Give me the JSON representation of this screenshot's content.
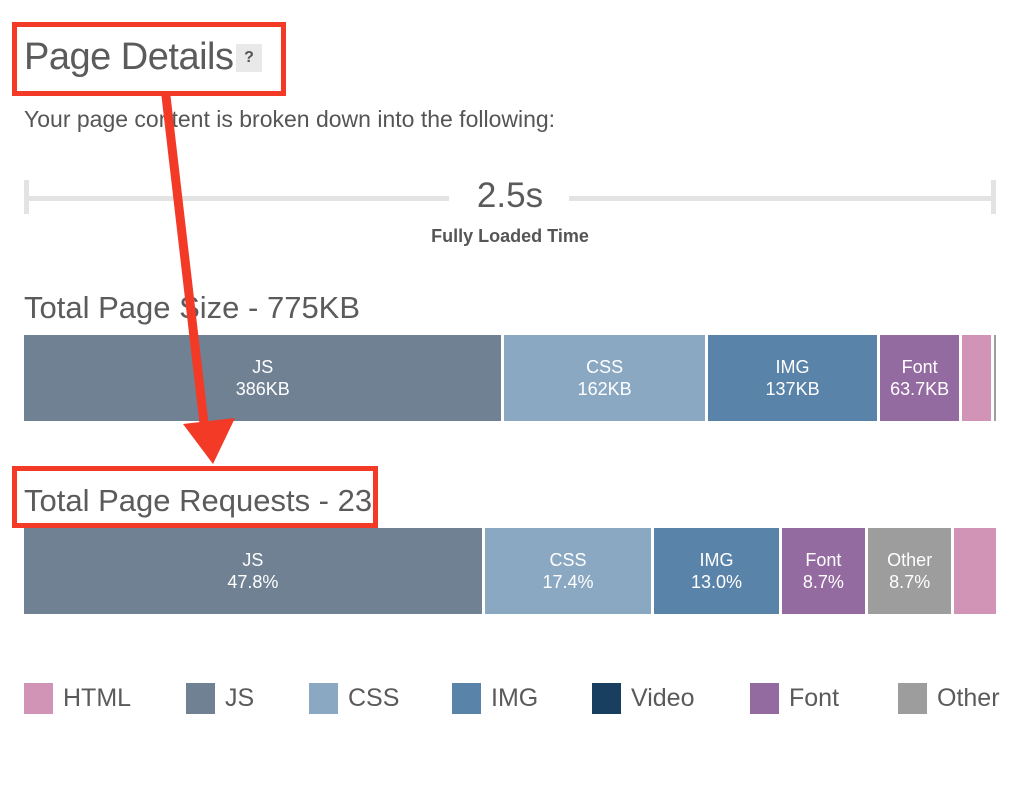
{
  "header": {
    "title": "Page Details",
    "help": "?"
  },
  "subtitle": "Your page content is broken down into the following:",
  "timeline": {
    "value": "2.5s",
    "label": "Fully Loaded Time"
  },
  "colors": {
    "HTML": "#d294b6",
    "JS": "#6f8193",
    "CSS": "#8ba8c2",
    "IMG": "#5a83a9",
    "Video": "#183f60",
    "Font": "#946ba0",
    "Other": "#9d9d9d",
    "annotation": "#f23a27"
  },
  "size_breakdown": {
    "title": "Total Page Size - 775KB",
    "segments": [
      {
        "type": "JS",
        "label": "JS",
        "value": "386KB",
        "kb": 386
      },
      {
        "type": "CSS",
        "label": "CSS",
        "value": "162KB",
        "kb": 162
      },
      {
        "type": "IMG",
        "label": "IMG",
        "value": "137KB",
        "kb": 137
      },
      {
        "type": "Font",
        "label": "Font",
        "value": "63.7KB",
        "kb": 63.7
      },
      {
        "type": "HTML",
        "label": "",
        "value": "",
        "kb": 23
      },
      {
        "type": "Other",
        "label": "",
        "value": "",
        "kb": 2
      }
    ]
  },
  "request_breakdown": {
    "title": "Total Page Requests - 23",
    "segments": [
      {
        "type": "JS",
        "label": "JS",
        "value": "47.8%",
        "pct": 47.8
      },
      {
        "type": "CSS",
        "label": "CSS",
        "value": "17.4%",
        "pct": 17.4
      },
      {
        "type": "IMG",
        "label": "IMG",
        "value": "13.0%",
        "pct": 13.0
      },
      {
        "type": "Font",
        "label": "Font",
        "value": "8.7%",
        "pct": 8.7
      },
      {
        "type": "Other",
        "label": "Other",
        "value": "8.7%",
        "pct": 8.7
      },
      {
        "type": "HTML",
        "label": "",
        "value": "",
        "pct": 4.35
      }
    ]
  },
  "legend": [
    {
      "type": "HTML",
      "label": "HTML"
    },
    {
      "type": "JS",
      "label": "JS"
    },
    {
      "type": "CSS",
      "label": "CSS"
    },
    {
      "type": "IMG",
      "label": "IMG"
    },
    {
      "type": "Video",
      "label": "Video"
    },
    {
      "type": "Font",
      "label": "Font"
    },
    {
      "type": "Other",
      "label": "Other"
    }
  ]
}
